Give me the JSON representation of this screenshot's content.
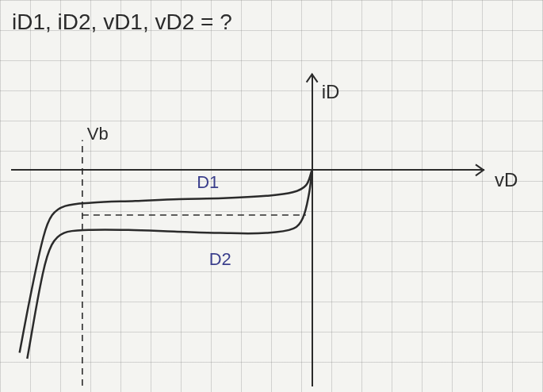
{
  "chart_data": {
    "type": "line",
    "title": "iD1, iD2, vD1, vD2 = ?",
    "x_label": "vD",
    "y_label": "iD",
    "xlim": [
      -9.8,
      5.6
    ],
    "ylim": [
      -7.2,
      3.2
    ],
    "tick_labels": false,
    "grid": false,
    "series": [
      {
        "name": "D1",
        "color": "#2b2b2b",
        "marker": "none",
        "line_style": "solid",
        "label_at": [
          -3.4,
          -0.45
        ],
        "x": [
          -9.55,
          -9.2,
          -8.77,
          -8.49,
          -8.06,
          -7.2,
          -5.77,
          -4.34,
          -2.91,
          -1.49,
          -0.63,
          -0.2,
          0
        ],
        "values": [
          -6.1,
          -4.23,
          -2.23,
          -1.51,
          -1.2,
          -1.09,
          -1.03,
          -0.97,
          -0.94,
          -0.86,
          -0.74,
          -0.51,
          0
        ]
      },
      {
        "name": "D2",
        "color": "#2b2b2b",
        "marker": "none",
        "line_style": "solid",
        "label_at": [
          -3.0,
          -3.0
        ],
        "x": [
          -9.3,
          -8.8,
          -8.5,
          -8.1,
          -7.3,
          -6.0,
          -4.5,
          -3.0,
          -1.5,
          -0.6,
          -0.3,
          -0.1,
          0
        ],
        "values": [
          -6.3,
          -3.5,
          -2.5,
          -2.1,
          -2.0,
          -2.0,
          -2.05,
          -2.1,
          -2.1,
          -1.95,
          -1.6,
          -0.8,
          0
        ]
      }
    ],
    "reference_lines": [
      {
        "axis": "x",
        "value": -7.5,
        "from": -7.2,
        "to": 1.0,
        "line_style": "dashed",
        "label": "Vb"
      },
      {
        "axis": "y",
        "value": -1.5,
        "from": -7.5,
        "to": -0.2,
        "line_style": "dashed"
      }
    ]
  }
}
